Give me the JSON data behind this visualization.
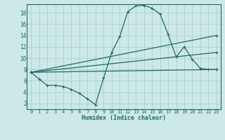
{
  "xlabel": "Humidex (Indice chaleur)",
  "bg_color": "#cde8e8",
  "line_color": "#1e6b64",
  "grid_color": "#aacfcf",
  "xlim": [
    -0.5,
    23.5
  ],
  "ylim": [
    1.0,
    19.5
  ],
  "xticks": [
    0,
    1,
    2,
    3,
    4,
    5,
    6,
    7,
    8,
    9,
    10,
    11,
    12,
    13,
    14,
    15,
    16,
    17,
    18,
    19,
    20,
    21,
    22,
    23
  ],
  "yticks": [
    2,
    4,
    6,
    8,
    10,
    12,
    14,
    16,
    18
  ],
  "series": [
    {
      "x": [
        0,
        1,
        2,
        3,
        4,
        5,
        6,
        7,
        8,
        9,
        10,
        11,
        12,
        13,
        14,
        15,
        16,
        17,
        18,
        19,
        20,
        21,
        22,
        23
      ],
      "y": [
        7.5,
        6.3,
        5.2,
        5.2,
        5.0,
        4.5,
        3.8,
        2.8,
        1.8,
        6.5,
        11.0,
        13.8,
        18.2,
        19.2,
        19.3,
        18.8,
        17.8,
        14.2,
        10.2,
        12.0,
        9.8,
        8.2,
        8.0,
        8.0
      ],
      "marker": "+"
    },
    {
      "x": [
        0,
        23
      ],
      "y": [
        7.5,
        14.0
      ],
      "marker": "+"
    },
    {
      "x": [
        0,
        23
      ],
      "y": [
        7.5,
        11.0
      ],
      "marker": "+"
    },
    {
      "x": [
        0,
        23
      ],
      "y": [
        7.5,
        8.0
      ],
      "marker": "+"
    }
  ]
}
